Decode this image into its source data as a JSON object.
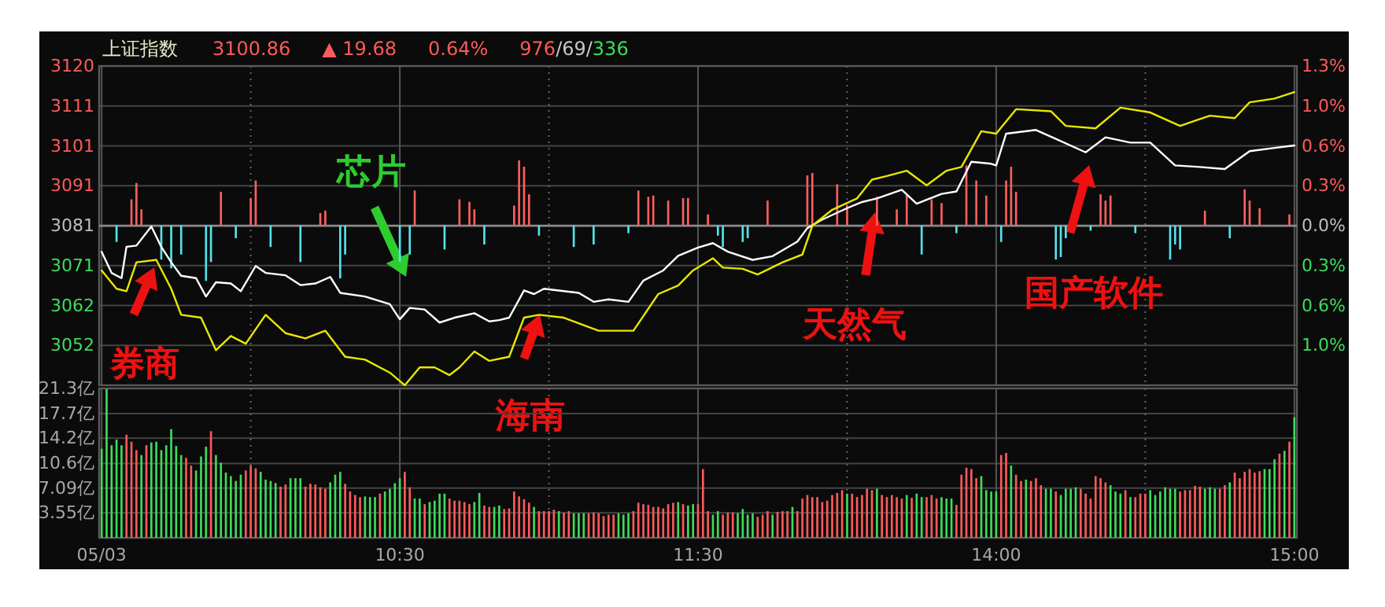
{
  "chart_data": [
    {
      "type": "line",
      "title": "上证指数",
      "annotations": [
        "3100.86",
        "▲ 19.68",
        "0.64%",
        "976",
        "/69/",
        "336",
        "券商",
        "芯片",
        "海南",
        "天然气",
        "国产软件"
      ],
      "categories": [
        null,
        null,
        null,
        null,
        null,
        null,
        null,
        null,
        null,
        null,
        null,
        null,
        null,
        null,
        null,
        null,
        null,
        null,
        null,
        null,
        null,
        null,
        null,
        null,
        null,
        null,
        null,
        null,
        null,
        null,
        null,
        null,
        null,
        null,
        null,
        null,
        null,
        null,
        null,
        null,
        null,
        null,
        null,
        null,
        null,
        null,
        null,
        null,
        null,
        null,
        null,
        null,
        null,
        null,
        null,
        null,
        null,
        null,
        null,
        null,
        null,
        null,
        null,
        null,
        null,
        null,
        null,
        null,
        null,
        null,
        null,
        null,
        null,
        null,
        null,
        null,
        null,
        null,
        null,
        null,
        null,
        null,
        null,
        null,
        null,
        null,
        null,
        null,
        null,
        null,
        null,
        null,
        null,
        null,
        null,
        null,
        null,
        null,
        null,
        null,
        null,
        null,
        null,
        null,
        null,
        null,
        null,
        null,
        null,
        null,
        null,
        null,
        null,
        null,
        null,
        null,
        null,
        null,
        null,
        null,
        null,
        null,
        null,
        null,
        null,
        null,
        null,
        null,
        null,
        null,
        null,
        null,
        null,
        null,
        null,
        null,
        null,
        null,
        null,
        null,
        null,
        null,
        null,
        null,
        null,
        null,
        null,
        null,
        null,
        null,
        null,
        null,
        null,
        null,
        null,
        null,
        null,
        null,
        null,
        null,
        null,
        null,
        null,
        null,
        null,
        null,
        null,
        null,
        null,
        null,
        null,
        null,
        null,
        null,
        null,
        null,
        null,
        null,
        null,
        null,
        null,
        null,
        null,
        null,
        null,
        null,
        null,
        null,
        null,
        null,
        null,
        null,
        null,
        null,
        null,
        null,
        null,
        null,
        null,
        null,
        null,
        null,
        null,
        null,
        null,
        null,
        null,
        null,
        null,
        null,
        null,
        null,
        null,
        null,
        null,
        null,
        null,
        null,
        null,
        null,
        null,
        null,
        null,
        null,
        null,
        null,
        null,
        null,
        null,
        null,
        null,
        null,
        null,
        null,
        null,
        null,
        null,
        null,
        null,
        null,
        null
      ],
      "ylim": [
        3042,
        3120.4
      ],
      "yticks": [
        {
          "value": 3051.8,
          "label": "3052"
        },
        {
          "value": 3061.6,
          "label": "3062"
        },
        {
          "value": 3071.4,
          "label": "3071"
        },
        {
          "value": 3081.2,
          "label": "3081"
        },
        {
          "value": 3091.0,
          "label": "3091"
        },
        {
          "value": 3100.8,
          "label": "3101"
        },
        {
          "value": 3110.6,
          "label": "3111"
        },
        {
          "value": 3120.4,
          "label": "3120"
        }
      ],
      "y2lim": [
        -1.272,
        1.272
      ],
      "y2ticks": [
        {
          "value": -0.954,
          "label": "1.0%"
        },
        {
          "value": -0.636,
          "label": "0.6%"
        },
        {
          "value": -0.318,
          "label": "0.3%"
        },
        {
          "value": 0,
          "label": "0.0%"
        },
        {
          "value": 0.318,
          "label": "0.3%"
        },
        {
          "value": 0.636,
          "label": "0.6%"
        },
        {
          "value": 0.954,
          "label": "1.0%"
        },
        {
          "value": 1.272,
          "label": "1.3%"
        }
      ],
      "ref_lines": [
        {
          "axis": "y",
          "value": 3081.18,
          "color": "#8a8a8a"
        }
      ],
      "grid": true,
      "tick_labels": "y",
      "series": [
        {
          "type": "bar",
          "axis": "y2",
          "color": "#ff5f5f",
          "values": [
            null,
            null,
            null,
            null,
            null,
            null,
            0.21,
            0.34,
            0.13,
            null,
            null,
            null,
            null,
            null,
            null,
            null,
            null,
            null,
            null,
            null,
            null,
            null,
            null,
            null,
            0.27,
            null,
            null,
            null,
            null,
            null,
            0.22,
            0.36,
            null,
            null,
            null,
            null,
            null,
            null,
            null,
            null,
            null,
            null,
            null,
            null,
            0.1,
            0.12,
            null,
            null,
            null,
            null,
            null,
            null,
            null,
            null,
            null,
            null,
            null,
            null,
            null,
            null,
            null,
            null,
            null,
            0.28,
            null,
            null,
            null,
            null,
            null,
            null,
            null,
            null,
            0.21,
            null,
            0.19,
            0.13,
            null,
            null,
            null,
            null,
            null,
            null,
            null,
            0.16,
            0.52,
            0.47,
            0.25,
            null,
            null,
            null,
            null,
            null,
            null,
            null,
            null,
            null,
            null,
            null,
            null,
            null,
            null,
            null,
            null,
            null,
            null,
            null,
            null,
            null,
            0.28,
            null,
            0.23,
            0.24,
            null,
            null,
            0.2,
            null,
            null,
            0.22,
            0.22,
            null,
            null,
            null,
            0.09,
            null,
            null,
            null,
            null,
            null,
            null,
            null,
            null,
            null,
            null,
            null,
            0.2,
            null,
            null,
            null,
            null,
            null,
            null,
            null,
            0.4,
            0.42,
            null,
            null,
            null,
            null,
            0.33,
            null,
            0.16,
            null,
            null,
            null,
            null,
            null,
            0.23,
            null,
            null,
            null,
            0.13,
            null,
            0.25,
            null,
            null,
            null,
            null,
            0.21,
            null,
            0.18,
            null,
            null,
            null,
            null,
            0.48,
            null,
            0.36,
            null,
            0.24,
            null,
            null,
            null,
            0.36,
            0.47,
            0.27,
            null,
            null,
            null,
            null,
            null,
            null,
            null,
            null,
            null,
            null,
            null,
            null,
            null,
            null,
            null,
            null,
            0.25,
            0.2,
            0.24,
            null,
            null,
            null,
            null,
            null,
            null,
            null,
            null,
            null,
            null,
            null,
            null,
            null,
            null,
            null,
            null,
            null,
            null,
            0.12,
            null,
            null,
            null,
            null,
            null,
            null,
            null,
            0.29,
            0.2,
            null,
            0.14,
            null,
            null,
            null,
            null,
            null,
            0.09,
            null
          ]
        },
        {
          "type": "bar",
          "axis": "y2",
          "color": "#55e3ec",
          "values": [
            null,
            null,
            null,
            -0.13,
            null,
            null,
            null,
            null,
            null,
            null,
            null,
            null,
            -0.27,
            null,
            -0.34,
            null,
            -0.23,
            null,
            null,
            null,
            null,
            -0.44,
            -0.29,
            null,
            null,
            null,
            null,
            -0.1,
            null,
            null,
            null,
            null,
            null,
            null,
            -0.17,
            null,
            null,
            null,
            null,
            null,
            -0.29,
            null,
            null,
            null,
            null,
            null,
            null,
            null,
            -0.42,
            -0.23,
            null,
            null,
            null,
            null,
            null,
            null,
            null,
            null,
            null,
            null,
            -0.29,
            null,
            -0.23,
            null,
            null,
            null,
            null,
            null,
            null,
            -0.19,
            null,
            null,
            null,
            null,
            null,
            null,
            null,
            -0.15,
            null,
            null,
            null,
            null,
            null,
            null,
            null,
            null,
            null,
            null,
            -0.08,
            null,
            null,
            null,
            null,
            null,
            null,
            -0.17,
            null,
            null,
            null,
            -0.15,
            null,
            null,
            null,
            null,
            null,
            null,
            -0.06,
            null,
            null,
            null,
            null,
            null,
            null,
            null,
            null,
            null,
            null,
            null,
            null,
            null,
            null,
            null,
            null,
            null,
            -0.08,
            -0.17,
            null,
            null,
            null,
            -0.13,
            -0.1,
            null,
            null,
            null,
            null,
            null,
            null,
            null,
            null,
            null,
            null,
            null,
            null,
            null,
            null,
            null,
            null,
            null,
            null,
            null,
            null,
            null,
            null,
            null,
            null,
            null,
            null,
            null,
            null,
            null,
            null,
            null,
            null,
            null,
            null,
            -0.23,
            null,
            null,
            null,
            null,
            null,
            null,
            -0.06,
            null,
            null,
            null,
            null,
            null,
            null,
            null,
            null,
            -0.13,
            null,
            null,
            null,
            null,
            null,
            null,
            null,
            null,
            null,
            null,
            -0.27,
            -0.25,
            -0.1,
            null,
            null,
            null,
            null,
            -0.04,
            null,
            null,
            null,
            null,
            null,
            null,
            null,
            null,
            -0.06,
            null,
            null,
            null,
            null,
            null,
            null,
            -0.27,
            -0.15,
            -0.19,
            null,
            null,
            null,
            null,
            null,
            null,
            null,
            null,
            null,
            -0.1,
            null,
            null,
            null,
            null,
            null,
            null,
            null,
            null,
            null,
            null,
            null,
            null,
            null
          ]
        },
        {
          "color": "#ffffff",
          "values": [
            3074.8,
            null,
            3069.6,
            null,
            3068.3,
            3076.0,
            null,
            3076.3,
            null,
            null,
            3081.0,
            null,
            3076.0,
            null,
            3072.2,
            null,
            3068.9,
            null,
            null,
            3068.3,
            null,
            3063.8,
            null,
            3067.3,
            null,
            null,
            3067.0,
            null,
            3065.1,
            null,
            null,
            3071.3,
            null,
            3069.6,
            null,
            null,
            null,
            3069.0,
            null,
            null,
            3066.6,
            null,
            null,
            3067.0,
            null,
            null,
            3068.6,
            null,
            3064.7,
            null,
            null,
            null,
            null,
            3063.8,
            null,
            null,
            null,
            null,
            3061.9,
            null,
            3058.2,
            null,
            3061.0,
            null,
            null,
            3060.6,
            null,
            null,
            3057.4,
            null,
            null,
            3058.6,
            null,
            null,
            null,
            3059.7,
            null,
            null,
            3057.7,
            null,
            3058.0,
            null,
            3058.6,
            null,
            null,
            3065.3,
            null,
            3064.4,
            null,
            3065.7,
            null,
            null,
            null,
            null,
            null,
            null,
            3064.7,
            null,
            null,
            3062.5,
            null,
            null,
            3063.1,
            null,
            null,
            null,
            3062.5,
            null,
            null,
            3067.7,
            null,
            null,
            null,
            3070.2,
            null,
            null,
            3073.8,
            null,
            null,
            null,
            3075.8,
            null,
            null,
            3076.9,
            null,
            null,
            3074.8,
            null,
            null,
            null,
            null,
            3072.8,
            null,
            null,
            null,
            3073.7,
            null,
            null,
            null,
            null,
            3077.3,
            null,
            3080.6,
            null,
            null,
            3082.7,
            null,
            null,
            null,
            null,
            3085.5,
            null,
            null,
            3087.0,
            null,
            null,
            3087.9,
            null,
            null,
            null,
            null,
            3090.0,
            null,
            null,
            3086.6,
            null,
            null,
            null,
            null,
            3089.0,
            null,
            null,
            3089.6,
            null,
            null,
            3096.9,
            null,
            null,
            null,
            3096.4,
            3096.0,
            null,
            3103.8,
            null,
            null,
            null,
            null,
            null,
            3104.7,
            null,
            null,
            null,
            3102.5,
            null,
            null,
            null,
            null,
            null,
            3099.2,
            null,
            null,
            null,
            3102.9,
            null,
            null,
            null,
            null,
            3101.6,
            null,
            null,
            null,
            3101.6,
            null,
            null,
            null,
            null,
            3096.0,
            null,
            null,
            null,
            null,
            3095.6,
            null,
            null,
            null,
            null,
            3095.1,
            null,
            null,
            null,
            null,
            3099.5,
            null,
            null,
            null,
            null,
            3100.3,
            null,
            null,
            null,
            3100.9
          ]
        },
        {
          "color": "#e8e800",
          "values": [
            3070.2,
            null,
            null,
            3065.7,
            null,
            3065.1,
            null,
            3072.2,
            null,
            null,
            null,
            3072.8,
            null,
            null,
            3065.7,
            null,
            3059.3,
            null,
            null,
            null,
            3058.6,
            null,
            null,
            3050.6,
            null,
            null,
            3054.1,
            null,
            null,
            3052.2,
            null,
            null,
            null,
            3059.3,
            null,
            null,
            null,
            3054.8,
            null,
            null,
            null,
            3053.5,
            null,
            null,
            null,
            3055.4,
            null,
            null,
            null,
            3049.0,
            null,
            null,
            null,
            3048.3,
            null,
            null,
            null,
            null,
            3045.1,
            null,
            null,
            3042.0,
            null,
            null,
            3046.4,
            null,
            null,
            3046.4,
            null,
            null,
            3044.5,
            null,
            3046.4,
            null,
            null,
            3050.3,
            null,
            null,
            3048.0,
            null,
            null,
            null,
            3049.0,
            null,
            null,
            3058.6,
            null,
            null,
            3059.3,
            null,
            null,
            null,
            null,
            3058.6,
            null,
            null,
            null,
            null,
            null,
            null,
            3055.4,
            null,
            null,
            null,
            null,
            null,
            null,
            3055.4,
            null,
            null,
            null,
            null,
            3064.4,
            null,
            null,
            null,
            3066.5,
            null,
            null,
            3070.2,
            null,
            null,
            null,
            3073.2,
            null,
            3070.9,
            null,
            null,
            null,
            3070.6,
            null,
            null,
            3069.2,
            null,
            null,
            null,
            null,
            3072.2,
            null,
            null,
            null,
            3074.1,
            null,
            3081.2,
            null,
            null,
            null,
            3085.1,
            null,
            null,
            null,
            null,
            3087.9,
            null,
            null,
            3092.5,
            null,
            null,
            3093.4,
            null,
            null,
            null,
            3094.7,
            null,
            null,
            null,
            3091.1,
            null,
            null,
            null,
            3094.7,
            null,
            null,
            3095.6,
            null,
            null,
            null,
            3104.4,
            null,
            null,
            3103.8,
            null,
            null,
            null,
            3109.8,
            null,
            null,
            null,
            null,
            null,
            null,
            3109.3,
            null,
            null,
            3105.7,
            null,
            null,
            null,
            null,
            null,
            3105.1,
            null,
            null,
            null,
            null,
            3110.2,
            null,
            null,
            null,
            null,
            null,
            3109.0,
            null,
            null,
            null,
            null,
            null,
            3105.7,
            null,
            null,
            null,
            null,
            null,
            3108.2,
            null,
            null,
            null,
            null,
            3107.6,
            null,
            null,
            3111.5,
            null,
            null,
            null,
            null,
            3112.4,
            null,
            null,
            null,
            3114.0
          ]
        }
      ]
    },
    {
      "type": "bar",
      "categories": [
        "05/03",
        null,
        null,
        null,
        null,
        null,
        null,
        null,
        null,
        null,
        null,
        null,
        null,
        null,
        null,
        null,
        null,
        null,
        null,
        null,
        null,
        null,
        null,
        null,
        null,
        null,
        null,
        null,
        null,
        null,
        null,
        null,
        null,
        null,
        null,
        null,
        null,
        null,
        null,
        null,
        null,
        null,
        null,
        null,
        null,
        null,
        null,
        null,
        null,
        null,
        null,
        null,
        null,
        null,
        null,
        null,
        null,
        null,
        null,
        null,
        "10:30",
        null,
        null,
        null,
        null,
        null,
        null,
        null,
        null,
        null,
        null,
        null,
        null,
        null,
        null,
        null,
        null,
        null,
        null,
        null,
        null,
        null,
        null,
        null,
        null,
        null,
        null,
        null,
        null,
        null,
        null,
        null,
        null,
        null,
        null,
        null,
        null,
        null,
        null,
        null,
        null,
        null,
        null,
        null,
        null,
        null,
        null,
        null,
        null,
        null,
        null,
        null,
        null,
        null,
        null,
        null,
        null,
        null,
        null,
        null,
        "11:30",
        null,
        null,
        null,
        null,
        null,
        null,
        null,
        null,
        null,
        null,
        null,
        null,
        null,
        null,
        null,
        null,
        null,
        null,
        null,
        null,
        null,
        null,
        null,
        null,
        null,
        null,
        null,
        null,
        null,
        null,
        null,
        null,
        null,
        null,
        null,
        null,
        null,
        null,
        null,
        null,
        null,
        null,
        null,
        null,
        null,
        null,
        null,
        null,
        null,
        null,
        null,
        null,
        null,
        null,
        null,
        null,
        null,
        null,
        null,
        "14:00",
        null,
        null,
        null,
        null,
        null,
        null,
        null,
        null,
        null,
        null,
        null,
        null,
        null,
        null,
        null,
        null,
        null,
        null,
        null,
        null,
        null,
        null,
        null,
        null,
        null,
        null,
        null,
        null,
        null,
        null,
        null,
        null,
        null,
        null,
        null,
        null,
        null,
        null,
        null,
        null,
        null,
        null,
        null,
        null,
        null,
        null,
        null,
        null,
        null,
        null,
        null,
        null,
        null,
        null,
        null,
        null,
        null,
        null,
        null,
        "15:00"
      ],
      "ylim": [
        0,
        21.3
      ],
      "yticks": [
        {
          "value": 3.55,
          "label": "3.55亿"
        },
        {
          "value": 7.09,
          "label": "7.09亿"
        },
        {
          "value": 10.6,
          "label": "10.6亿"
        },
        {
          "value": 14.2,
          "label": "14.2亿"
        },
        {
          "value": 17.7,
          "label": "17.7亿"
        },
        {
          "value": 21.3,
          "label": "21.3亿"
        }
      ],
      "grid": true,
      "values": [
        12.7,
        21.2,
        13.2,
        14.0,
        13.2,
        14.7,
        13.7,
        12.5,
        11.8,
        13.2,
        13.6,
        13.7,
        12.5,
        13.2,
        15.5,
        13.1,
        11.8,
        11.4,
        10.3,
        9.6,
        11.6,
        13.0,
        15.2,
        11.8,
        10.7,
        9.3,
        8.8,
        8.1,
        9.0,
        9.6,
        10.3,
        9.9,
        9.4,
        8.3,
        8.1,
        7.8,
        7.3,
        7.6,
        8.5,
        8.5,
        8.5,
        7.3,
        7.7,
        7.6,
        7.2,
        7.0,
        7.9,
        9.0,
        9.4,
        7.7,
        6.6,
        6.1,
        5.8,
        5.9,
        5.8,
        5.8,
        6.3,
        6.6,
        7.0,
        7.8,
        8.5,
        9.4,
        7.2,
        5.6,
        5.6,
        4.8,
        5.1,
        5.3,
        6.3,
        6.3,
        5.6,
        5.3,
        5.3,
        5.1,
        4.8,
        5.1,
        6.4,
        4.6,
        4.4,
        4.4,
        4.6,
        4.1,
        4.2,
        6.6,
        5.9,
        5.5,
        5.0,
        4.4,
        3.8,
        3.8,
        3.8,
        4.0,
        3.8,
        3.6,
        3.8,
        3.5,
        3.5,
        3.5,
        3.5,
        3.6,
        3.5,
        3.1,
        3.3,
        3.3,
        3.5,
        3.3,
        3.5,
        3.8,
        5.0,
        4.8,
        4.7,
        4.4,
        4.4,
        4.2,
        4.8,
        5.0,
        5.1,
        4.8,
        4.6,
        4.8,
        4.8,
        9.8,
        3.8,
        3.3,
        3.8,
        3.3,
        3.6,
        3.6,
        3.5,
        4.1,
        3.3,
        3.5,
        3.0,
        3.3,
        3.8,
        3.3,
        3.7,
        3.8,
        3.8,
        4.4,
        3.8,
        5.6,
        6.1,
        5.8,
        5.8,
        5.1,
        5.3,
        6.1,
        6.4,
        6.8,
        6.3,
        6.3,
        5.8,
        6.1,
        7.0,
        6.8,
        7.0,
        6.1,
        5.8,
        6.1,
        5.8,
        5.6,
        6.1,
        5.7,
        6.3,
        5.8,
        5.8,
        6.1,
        5.6,
        5.8,
        5.6,
        5.6,
        4.7,
        9.0,
        10.0,
        9.8,
        8.5,
        8.8,
        6.8,
        6.6,
        6.6,
        11.8,
        12.1,
        10.3,
        9.0,
        8.1,
        8.3,
        8.1,
        8.5,
        7.5,
        7.0,
        7.0,
        6.6,
        6.1,
        7.0,
        7.0,
        7.2,
        7.0,
        6.3,
        5.6,
        8.8,
        8.5,
        7.9,
        7.5,
        6.6,
        6.3,
        6.8,
        5.8,
        5.8,
        6.3,
        6.3,
        6.8,
        6.1,
        6.6,
        7.2,
        7.0,
        7.0,
        6.6,
        6.8,
        6.8,
        7.4,
        7.3,
        7.0,
        7.2,
        7.0,
        7.0,
        7.5,
        7.9,
        9.3,
        8.5,
        9.4,
        9.8,
        9.3,
        9.5,
        9.8,
        9.8,
        11.2,
        12.0,
        12.4,
        13.7,
        17.2
      ],
      "colors": [
        "#3ddc5a",
        "#3ddc5a",
        "#3ddc5a",
        "#3ddc5a",
        "#3ddc5a",
        "#ff5a5a",
        "#ff5a5a",
        "#ff5a5a",
        "#3ddc5a",
        "#ff5a5a",
        "#3ddc5a",
        "#3ddc5a",
        "#3ddc5a",
        "#3ddc5a",
        "#3ddc5a",
        "#3ddc5a",
        "#3ddc5a",
        "#ff5a5a",
        "#ff5a5a",
        "#3ddc5a",
        "#3ddc5a",
        "#3ddc5a",
        "#ff5a5a",
        "#3ddc5a",
        "#3ddc5a",
        "#3ddc5a",
        "#3ddc5a",
        "#3ddc5a",
        "#3ddc5a",
        "#ff5a5a",
        "#ff5a5a",
        "#ff5a5a",
        "#3ddc5a",
        "#3ddc5a",
        "#3ddc5a",
        "#3ddc5a",
        "#ff5a5a",
        "#ff5a5a",
        "#3ddc5a",
        "#3ddc5a",
        "#3ddc5a",
        "#ff5a5a",
        "#ff5a5a",
        "#ff5a5a",
        "#ff5a5a",
        "#ff5a5a",
        "#3ddc5a",
        "#3ddc5a",
        "#3ddc5a",
        "#ff5a5a",
        "#ff5a5a",
        "#ff5a5a",
        "#ff5a5a",
        "#3ddc5a",
        "#3ddc5a",
        "#3ddc5a",
        "#ff5a5a",
        "#3ddc5a",
        "#3ddc5a",
        "#3ddc5a",
        "#3ddc5a",
        "#ff5a5a",
        "#ff5a5a",
        "#3ddc5a",
        "#3ddc5a",
        "#ff5a5a",
        "#3ddc5a",
        "#3ddc5a",
        "#3ddc5a",
        "#3ddc5a",
        "#ff5a5a",
        "#ff5a5a",
        "#ff5a5a",
        "#ff5a5a",
        "#ff5a5a",
        "#3ddc5a",
        "#3ddc5a",
        "#ff5a5a",
        "#ff5a5a",
        "#3ddc5a",
        "#3ddc5a",
        "#ff5a5a",
        "#ff5a5a",
        "#ff5a5a",
        "#ff5a5a",
        "#ff5a5a",
        "#ff5a5a",
        "#3ddc5a",
        "#ff5a5a",
        "#ff5a5a",
        "#ff5a5a",
        "#ff5a5a",
        "#3ddc5a",
        "#ff5a5a",
        "#ff5a5a",
        "#3ddc5a",
        "#3ddc5a",
        "#3ddc5a",
        "#ff5a5a",
        "#ff5a5a",
        "#ff5a5a",
        "#ff5a5a",
        "#ff5a5a",
        "#ff5a5a",
        "#3ddc5a",
        "#3ddc5a",
        "#3ddc5a",
        "#ff5a5a",
        "#ff5a5a",
        "#ff5a5a",
        "#ff5a5a",
        "#ff5a5a",
        "#ff5a5a",
        "#ff5a5a",
        "#ff5a5a",
        "#ff5a5a",
        "#3ddc5a",
        "#ff5a5a",
        "#3ddc5a",
        "#3ddc5a",
        "#ff5a5a",
        "#ff5a5a",
        "#ff5a5a",
        "#3ddc5a",
        "#3ddc5a",
        "#ff5a5a",
        "#ff5a5a",
        "#ff5a5a",
        "#3ddc5a",
        "#3ddc5a",
        "#3ddc5a",
        "#3ddc5a",
        "#ff5a5a",
        "#ff5a5a",
        "#ff5a5a",
        "#3ddc5a",
        "#ff5a5a",
        "#ff5a5a",
        "#ff5a5a",
        "#3ddc5a",
        "#ff5a5a",
        "#ff5a5a",
        "#ff5a5a",
        "#ff5a5a",
        "#ff5a5a",
        "#ff5a5a",
        "#ff5a5a",
        "#ff5a5a",
        "#ff5a5a",
        "#ff5a5a",
        "#3ddc5a",
        "#ff5a5a",
        "#ff5a5a",
        "#ff5a5a",
        "#ff5a5a",
        "#ff5a5a",
        "#3ddc5a",
        "#ff5a5a",
        "#ff5a5a",
        "#ff5a5a",
        "#ff5a5a",
        "#ff5a5a",
        "#3ddc5a",
        "#ff5a5a",
        "#3ddc5a",
        "#3ddc5a",
        "#ff5a5a",
        "#ff5a5a",
        "#ff5a5a",
        "#3ddc5a",
        "#3ddc5a",
        "#3ddc5a",
        "#ff5a5a",
        "#ff5a5a",
        "#ff5a5a",
        "#ff5a5a",
        "#ff5a5a",
        "#3ddc5a",
        "#3ddc5a",
        "#3ddc5a",
        "#3ddc5a",
        "#ff5a5a",
        "#ff5a5a",
        "#3ddc5a",
        "#ff5a5a",
        "#ff5a5a",
        "#3ddc5a",
        "#ff5a5a",
        "#ff5a5a",
        "#ff5a5a",
        "#3ddc5a",
        "#3ddc5a",
        "#ff5a5a",
        "#3ddc5a",
        "#3ddc5a",
        "#3ddc5a",
        "#3ddc5a",
        "#ff5a5a",
        "#ff5a5a",
        "#ff5a5a",
        "#ff5a5a",
        "#ff5a5a",
        "#ff5a5a",
        "#3ddc5a",
        "#3ddc5a",
        "#3ddc5a",
        "#ff5a5a",
        "#3ddc5a",
        "#ff5a5a",
        "#ff5a5a",
        "#ff5a5a",
        "#3ddc5a",
        "#3ddc5a",
        "#3ddc5a",
        "#3ddc5a",
        "#3ddc5a",
        "#3ddc5a",
        "#ff5a5a",
        "#ff5a5a",
        "#ff5a5a",
        "#ff5a5a",
        "#ff5a5a",
        "#3ddc5a",
        "#3ddc5a",
        "#3ddc5a",
        "#ff5a5a",
        "#ff5a5a",
        "#3ddc5a",
        "#ff5a5a",
        "#ff5a5a",
        "#ff5a5a",
        "#ff5a5a",
        "#ff5a5a",
        "#ff5a5a",
        "#3ddc5a",
        "#3ddc5a",
        "#3ddc5a",
        "#ff5a5a",
        "#3ddc5a",
        "#ff5a5a",
        "#3ddc5a"
      ]
    }
  ]
}
